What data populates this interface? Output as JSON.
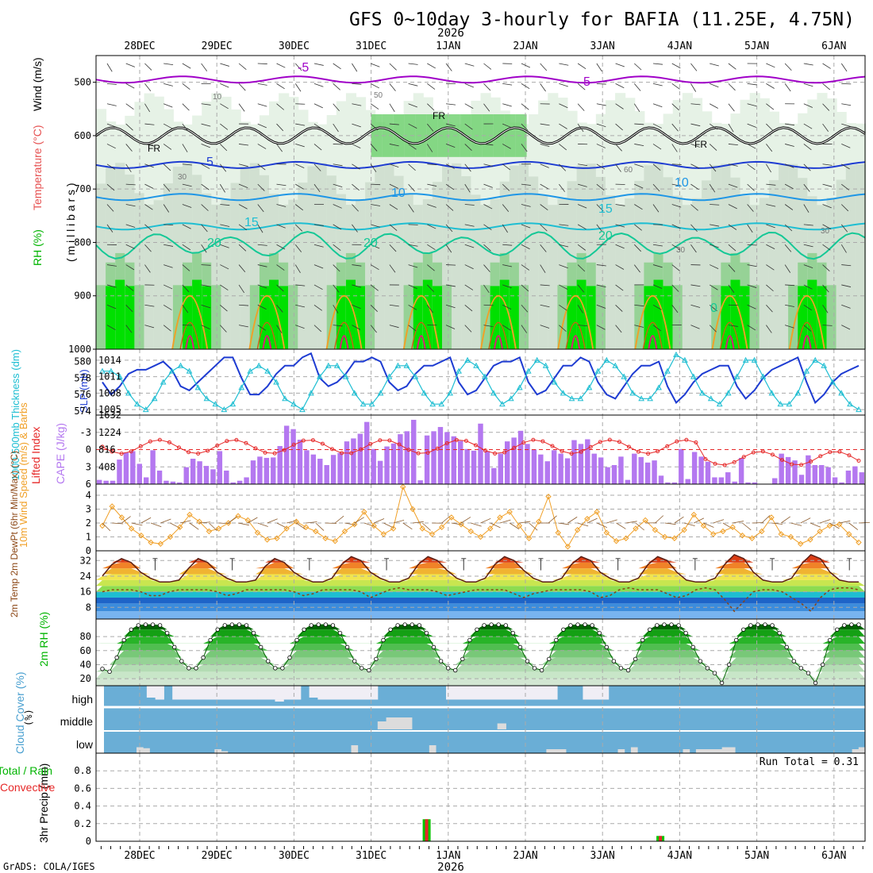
{
  "title": "GFS 0~10day 3-hourly for BAFIA (11.25E, 4.75N)",
  "year_label": "2026",
  "credit": "GrADS: COLA/IGES",
  "date_ticks": [
    "28DEC",
    "29DEC",
    "30DEC",
    "31DEC",
    "1JAN",
    "2JAN",
    "3JAN",
    "4JAN",
    "5JAN",
    "6JAN"
  ],
  "colors": {
    "purple": "#a000c8",
    "blue": "#1e3cd2",
    "cyan": "#1ebed2",
    "orange": "#f0a028",
    "red": "#e62828",
    "green": "#00dc00",
    "barPurple": "#b478f0"
  },
  "chart_data": [
    {
      "type": "heatmap",
      "name": "cross-section",
      "ylabel_parts": [
        "RH (%)",
        "Temperature (°C)",
        "Wind (m/s)"
      ],
      "ylabel_unit": "( m i l l i b a r s )",
      "y_ticks": [
        500,
        600,
        700,
        800,
        900,
        1000
      ],
      "ylim": [
        1000,
        450
      ],
      "contour_labels": [
        "-5",
        "5",
        "FR",
        "5",
        "10",
        "15",
        "20",
        "20",
        "10",
        "15",
        "20",
        "FR",
        "FR",
        "0",
        "10",
        "30",
        "50",
        "60",
        "30",
        "30"
      ],
      "freezing_level_hPa": 600,
      "isotherm_levels_hPa": {
        "-5": 495,
        "5": 655,
        "10": 715,
        "15": 770,
        "20": 805
      }
    },
    {
      "type": "line",
      "name": "thickness-slp",
      "ylabel_left": "1000-500mb Thickness (dm)",
      "ylabel_right": "SLP (mb)",
      "left_ticks": [
        574,
        576,
        578,
        580
      ],
      "right_ticks": [
        1005,
        1008,
        1011,
        1014
      ],
      "left_range": [
        573.5,
        581.5
      ],
      "right_range": [
        1004,
        1016
      ],
      "series": [
        {
          "name": "Thickness",
          "values": [
            577.5,
            576,
            577,
            578.5,
            579,
            579,
            579.5,
            580,
            579,
            577,
            576.5,
            577.5,
            578.5,
            579.5,
            580.5,
            580.5,
            578,
            576,
            576,
            577,
            578.5,
            579.5,
            579.5,
            580.5,
            581,
            578,
            577,
            577.5,
            578.5,
            580,
            580,
            580.5,
            580,
            577.5,
            576.5,
            577,
            578.5,
            579.5,
            579.5,
            580,
            580.5,
            577.5,
            576,
            576.5,
            578,
            579.5,
            580,
            580,
            580.5,
            577.5,
            576,
            576.5,
            578,
            579.5,
            579.5,
            580.5,
            580,
            577.5,
            576,
            575.5,
            577,
            578.5,
            579.5,
            579.5,
            580,
            577,
            575,
            576,
            577.5,
            578.5,
            579,
            579.5,
            579.5,
            577,
            575.5,
            576.5,
            578,
            579,
            579.5,
            580,
            580.5,
            577.5,
            575,
            576,
            577.5,
            578.5,
            579,
            579.5
          ]
        },
        {
          "name": "SLP",
          "values": [
            1012,
            1012,
            1011,
            1008,
            1006,
            1005,
            1007,
            1010,
            1012,
            1013,
            1012,
            1009,
            1007,
            1006,
            1005,
            1006,
            1009,
            1012,
            1013,
            1012,
            1010,
            1007,
            1006,
            1005,
            1008,
            1011,
            1013,
            1013,
            1011,
            1008,
            1006,
            1006,
            1008,
            1011,
            1013,
            1013,
            1011,
            1008,
            1006,
            1006,
            1008,
            1012,
            1014,
            1013,
            1011,
            1008,
            1006,
            1007,
            1009,
            1012,
            1014,
            1013,
            1010,
            1008,
            1007,
            1007,
            1009,
            1012,
            1014,
            1013,
            1011,
            1008,
            1007,
            1007,
            1009,
            1012,
            1015,
            1014,
            1011,
            1008,
            1007,
            1006,
            1008,
            1011,
            1014,
            1014,
            1011,
            1008,
            1006,
            1006,
            1008,
            1012,
            1014,
            1013,
            1010,
            1008,
            1006,
            1005
          ]
        }
      ]
    },
    {
      "type": "bar",
      "name": "li-cape",
      "ylabel_left": "Lifted Index",
      "ylabel_right": "CAPE (J/kg)",
      "li_ticks": [
        -3,
        0,
        3,
        6
      ],
      "cape_ticks": [
        408,
        816,
        1224,
        1632
      ],
      "li_range": [
        6,
        -6
      ],
      "cape_range": [
        0,
        1632
      ],
      "cape": [
        100,
        80,
        80,
        580,
        750,
        780,
        480,
        160,
        800,
        320,
        80,
        60,
        40,
        400,
        600,
        540,
        430,
        350,
        780,
        320,
        40,
        80,
        160,
        560,
        650,
        620,
        630,
        900,
        1380,
        1300,
        1050,
        800,
        700,
        600,
        450,
        690,
        740,
        1010,
        1080,
        1190,
        1470,
        830,
        550,
        890,
        960,
        1180,
        1250,
        1520,
        90,
        1150,
        1250,
        1350,
        1230,
        1130,
        1020,
        830,
        790,
        1430,
        780,
        380,
        720,
        1010,
        1100,
        1260,
        950,
        820,
        700,
        540,
        800,
        720,
        610,
        1040,
        950,
        1060,
        720,
        630,
        400,
        450,
        650,
        100,
        720,
        640,
        510,
        560,
        200,
        40,
        40,
        830,
        120,
        760,
        650,
        530,
        160,
        160,
        280,
        60,
        620,
        40,
        40,
        0,
        0,
        140,
        720,
        640,
        560,
        220,
        680,
        450,
        450,
        400,
        160,
        40,
        320,
        420,
        280
      ]
    },
    {
      "type": "line",
      "name": "wind10m",
      "ylabel": "10m Wind Speed (m/s) & Barbs",
      "y_ticks": [
        0,
        1,
        2,
        3,
        4
      ],
      "ylim": [
        0,
        4.8
      ],
      "values": [
        1.8,
        3.2,
        2.4,
        1.6,
        1.1,
        0.6,
        0.5,
        1.0,
        1.7,
        2.6,
        2.1,
        1.4,
        1.6,
        2.0,
        2.5,
        2.2,
        1.3,
        0.8,
        0.9,
        1.6,
        2.1,
        1.7,
        1.4,
        0.9,
        0.7,
        1.4,
        1.9,
        2.8,
        1.8,
        1.2,
        1.6,
        4.6,
        3.0,
        1.6,
        1.2,
        1.7,
        2.4,
        1.9,
        1.4,
        1.0,
        1.6,
        2.4,
        2.8,
        1.8,
        0.9,
        2.1,
        3.9,
        1.3,
        0.3,
        1.5,
        2.3,
        2.8,
        1.3,
        0.7,
        0.9,
        1.6,
        2.2,
        1.5,
        1.0,
        0.9,
        1.5,
        2.6,
        1.8,
        1.2,
        1.4,
        1.7,
        1.1,
        0.9,
        1.4,
        2.4,
        1.2,
        1.0,
        0.5,
        0.8,
        1.4,
        1.8,
        1.9,
        1.2,
        0.6
      ]
    },
    {
      "type": "area",
      "name": "temp-dewpt",
      "ylabel": "2m Temp 2m DewPt (6hr Min/Max) (°C)",
      "y_ticks": [
        8,
        16,
        24,
        32
      ],
      "ylim": [
        2,
        37
      ],
      "temp": [
        24,
        30,
        33,
        31,
        26,
        23,
        21,
        21,
        22,
        28,
        33,
        31,
        26,
        23,
        21,
        21,
        22,
        29,
        33,
        31,
        26,
        23,
        21,
        21,
        23,
        30,
        34,
        32,
        26,
        23,
        21,
        21,
        23,
        30,
        34,
        32,
        27,
        23,
        21,
        21,
        23,
        30,
        34,
        32,
        27,
        23,
        21,
        21,
        23,
        30,
        34,
        32,
        26,
        23,
        21,
        21,
        23,
        30,
        34,
        32,
        26,
        22,
        21,
        21,
        23,
        30,
        35,
        33,
        26,
        22,
        21,
        21,
        23,
        30,
        35,
        33,
        26,
        22,
        21,
        21
      ],
      "dewpt": [
        16,
        17,
        17,
        17,
        16,
        14,
        14,
        16,
        17,
        17,
        17,
        17,
        16,
        14,
        15,
        17,
        17,
        17,
        17,
        17,
        16,
        14,
        15,
        17,
        17,
        17,
        17,
        16,
        13,
        15,
        17,
        18,
        17,
        17,
        17,
        16,
        14,
        15,
        16,
        17,
        17,
        17,
        17,
        15,
        13,
        15,
        16,
        17,
        17,
        17,
        17,
        16,
        13,
        14,
        17,
        18,
        17,
        17,
        17,
        15,
        13,
        14,
        17,
        18,
        17,
        12,
        6,
        11,
        16,
        17,
        17,
        16,
        13,
        10,
        6,
        13,
        17,
        18,
        18,
        17
      ]
    },
    {
      "type": "area",
      "name": "rh2m",
      "ylabel": "2m RH (%)",
      "y_ticks": [
        20,
        40,
        60,
        80
      ],
      "ylim": [
        10,
        105
      ],
      "values": [
        34,
        30,
        50,
        75,
        90,
        96,
        97,
        97,
        96,
        85,
        65,
        45,
        35,
        35,
        50,
        75,
        90,
        96,
        97,
        97,
        96,
        85,
        65,
        45,
        35,
        35,
        50,
        75,
        90,
        96,
        97,
        97,
        96,
        85,
        65,
        45,
        35,
        32,
        48,
        75,
        90,
        96,
        97,
        97,
        96,
        85,
        65,
        45,
        35,
        32,
        48,
        75,
        90,
        96,
        97,
        97,
        96,
        85,
        65,
        45,
        35,
        32,
        48,
        75,
        90,
        96,
        97,
        97,
        96,
        85,
        65,
        45,
        35,
        32,
        48,
        75,
        90,
        96,
        97,
        97,
        96,
        85,
        65,
        45,
        35,
        28,
        14,
        40,
        75,
        90,
        96,
        97,
        97,
        96,
        85,
        65,
        45,
        35,
        28,
        14,
        40,
        75,
        90,
        96,
        97,
        97
      ]
    },
    {
      "type": "bar",
      "name": "cloud-cover",
      "ylabel": "Cloud Cover (%)",
      "levels": [
        "high",
        "middle",
        "low"
      ],
      "high": [
        100,
        100,
        100,
        100,
        100,
        40,
        30,
        100,
        30,
        30,
        30,
        30,
        30,
        30,
        30,
        30,
        30,
        30,
        30,
        30,
        20,
        30,
        30,
        100,
        40,
        30,
        30,
        30,
        30,
        30,
        30,
        30,
        100,
        100,
        100,
        100,
        100,
        100,
        100,
        100,
        30,
        30,
        30,
        30,
        30,
        30,
        30,
        30,
        30,
        30,
        30,
        30,
        30,
        100,
        100,
        100,
        30,
        30,
        30,
        100,
        100,
        100,
        100,
        100,
        100,
        100,
        100,
        100,
        100,
        100,
        100,
        100,
        100,
        100,
        100,
        100,
        100,
        100,
        100,
        100,
        100,
        100,
        100,
        100,
        100,
        100,
        100,
        100,
        100
      ],
      "middle": [
        0,
        0,
        0,
        0,
        0,
        0,
        0,
        0,
        0,
        0,
        0,
        0,
        0,
        0,
        0,
        0,
        0,
        0,
        0,
        0,
        0,
        0,
        0,
        0,
        0,
        0,
        0,
        0,
        0,
        0,
        0,
        0,
        40,
        60,
        60,
        60,
        0,
        0,
        0,
        0,
        0,
        0,
        0,
        0,
        0,
        0,
        30,
        0,
        0,
        0,
        0,
        0,
        0,
        0,
        0,
        0,
        0,
        0,
        0,
        0,
        0,
        0,
        0,
        0,
        0,
        0,
        0,
        0,
        0,
        0,
        0,
        0,
        0,
        0,
        0,
        0,
        0,
        0,
        0,
        0,
        0,
        0,
        0,
        0,
        0,
        0,
        0,
        0,
        0
      ],
      "low": [
        0,
        0,
        0,
        0,
        0,
        0,
        0,
        0,
        0,
        0,
        0,
        0,
        0,
        0,
        0,
        0,
        0,
        0,
        0,
        0,
        0,
        0,
        0,
        0,
        0,
        0,
        0,
        0,
        0,
        0,
        0,
        0,
        0,
        0,
        0,
        0,
        0,
        0,
        0,
        0,
        0,
        0,
        0,
        0,
        0,
        0,
        0,
        0,
        0,
        0,
        0,
        0,
        0,
        0,
        0,
        0,
        0,
        0,
        0,
        0,
        0,
        0,
        0,
        0,
        0,
        0,
        0,
        0,
        0,
        0,
        0,
        0,
        0,
        0,
        0,
        0,
        0,
        0,
        0,
        0,
        0,
        0,
        0,
        0,
        0,
        0,
        0,
        0,
        0
      ],
      "low_extra": [
        0,
        0,
        0,
        0,
        0,
        30,
        25,
        0,
        0,
        0,
        0,
        0,
        0,
        0,
        0,
        0,
        0,
        20,
        10,
        0,
        0,
        0,
        0,
        0,
        0,
        0,
        0,
        0,
        0,
        0,
        0,
        0,
        0,
        0,
        0,
        0,
        0,
        0,
        40,
        0,
        0,
        0,
        0,
        0,
        0,
        0,
        0,
        0,
        0,
        0,
        40,
        0,
        0,
        0,
        0,
        0,
        0,
        0,
        0,
        0,
        0,
        0,
        0,
        0,
        0,
        0,
        0,
        0,
        20,
        20,
        20,
        0,
        0,
        0,
        0,
        0,
        0,
        0,
        0,
        20,
        0,
        30,
        0,
        0,
        0,
        0,
        0,
        0,
        0,
        20,
        0,
        20,
        20,
        20,
        20,
        30,
        30,
        0,
        0,
        0,
        0,
        0,
        0,
        0,
        0,
        0,
        0,
        0,
        0,
        0,
        0,
        0,
        0,
        0,
        0,
        20,
        30
      ]
    },
    {
      "type": "bar",
      "name": "precip",
      "ylabel": "3hr Precip (mm)",
      "legend": [
        "Total / Rain",
        "Convective"
      ],
      "run_total_label": "Run Total = 0.31",
      "y_ticks": [
        0,
        0.2,
        0.4,
        0.6,
        0.8
      ],
      "ylim": [
        0,
        1.0
      ],
      "events": [
        {
          "time_day": 4.22,
          "total": 0.25,
          "convective": 0.25
        },
        {
          "time_day": 7.25,
          "total": 0.06,
          "convective": 0.06
        }
      ]
    }
  ]
}
